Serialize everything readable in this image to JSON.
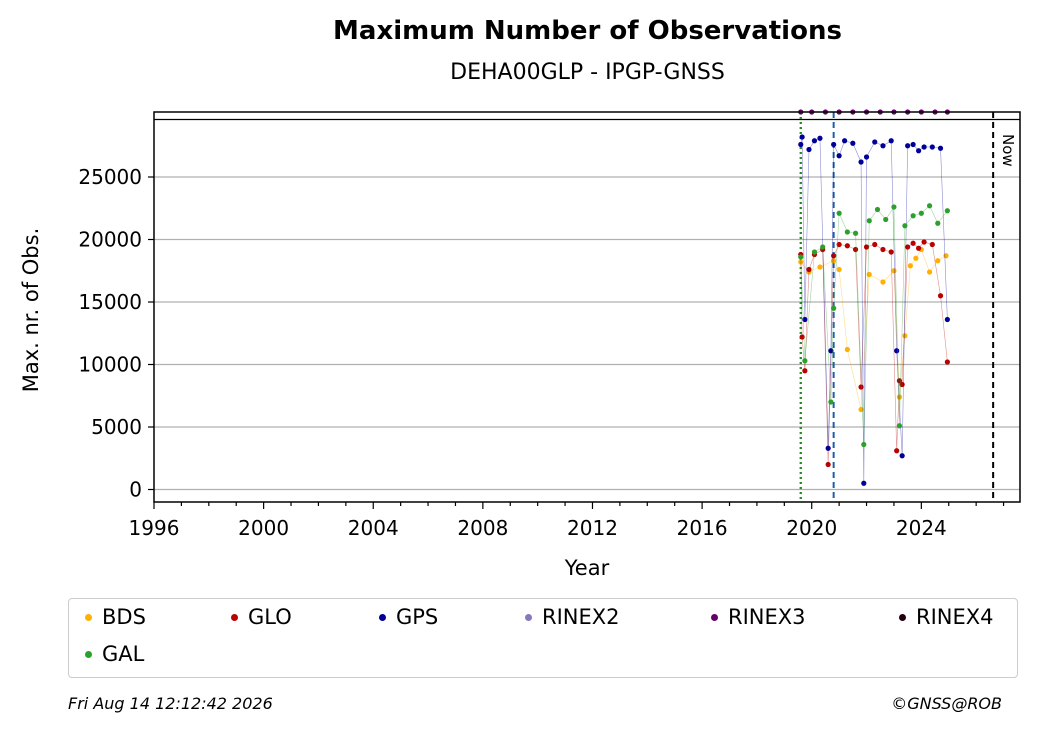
{
  "chart_data": {
    "type": "scatter",
    "title": "Maximum Number of Observations",
    "subtitle": "DEHA00GLP - IPGP-GNSS",
    "xlabel": "Year",
    "ylabel": "Max. nr. of Obs.",
    "xlim": [
      1996,
      2027.6
    ],
    "ylim": [
      -1000,
      30200
    ],
    "x_ticks": [
      1996,
      2000,
      2004,
      2008,
      2012,
      2016,
      2020,
      2024
    ],
    "y_ticks": [
      0,
      5000,
      10000,
      15000,
      20000,
      25000
    ],
    "grid": "horizontal",
    "top_line_y": 29600,
    "series": [
      {
        "name": "BDS",
        "color": "#ffb000",
        "x": [
          2019.6,
          2019.9,
          2020.3,
          2020.8,
          2021.0,
          2021.3,
          2021.8,
          2022.1,
          2022.6,
          2023.0,
          2023.2,
          2023.4,
          2023.6,
          2023.8,
          2024.0,
          2024.3,
          2024.6,
          2024.9
        ],
        "y": [
          18200,
          17400,
          17800,
          18300,
          17600,
          11200,
          6400,
          17200,
          16600,
          17500,
          7400,
          12300,
          17900,
          18500,
          19200,
          17400,
          18300,
          18700
        ]
      },
      {
        "name": "GLO",
        "color": "#bb0000",
        "x": [
          2019.6,
          2019.65,
          2019.75,
          2019.9,
          2020.1,
          2020.4,
          2020.6,
          2020.8,
          2021.0,
          2021.3,
          2021.6,
          2021.8,
          2022.0,
          2022.3,
          2022.6,
          2022.9,
          2023.1,
          2023.2,
          2023.3,
          2023.5,
          2023.7,
          2023.9,
          2024.1,
          2024.4,
          2024.7,
          2024.95
        ],
        "y": [
          18800,
          12200,
          9500,
          17600,
          18800,
          19200,
          2000,
          18700,
          19600,
          19500,
          19200,
          8200,
          19400,
          19600,
          19200,
          19000,
          3100,
          8700,
          8400,
          19400,
          19700,
          19300,
          19800,
          19600,
          15500,
          10200
        ]
      },
      {
        "name": "GPS",
        "color": "#000099",
        "x": [
          2019.6,
          2019.65,
          2019.75,
          2019.9,
          2020.1,
          2020.3,
          2020.6,
          2020.7,
          2020.8,
          2021.0,
          2021.2,
          2021.5,
          2021.8,
          2021.9,
          2022.0,
          2022.3,
          2022.6,
          2022.9,
          2023.1,
          2023.3,
          2023.5,
          2023.7,
          2023.9,
          2024.1,
          2024.4,
          2024.7,
          2024.95
        ],
        "y": [
          27600,
          28200,
          13600,
          27200,
          27900,
          28100,
          3300,
          11100,
          27600,
          26700,
          27900,
          27700,
          26200,
          500,
          26600,
          27800,
          27500,
          27900,
          11100,
          2700,
          27500,
          27600,
          27100,
          27400,
          27400,
          27300,
          13600
        ]
      },
      {
        "name": "RINEX2",
        "color": "#8877bb",
        "x": [],
        "y": []
      },
      {
        "name": "RINEX3",
        "color": "#660066",
        "x": [
          2019.6,
          2020.0,
          2020.5,
          2021.0,
          2021.5,
          2022.0,
          2022.5,
          2023.0,
          2023.5,
          2024.0,
          2024.5,
          2024.95
        ],
        "y": [
          30200,
          30200,
          30200,
          30200,
          30200,
          30200,
          30200,
          30200,
          30200,
          30200,
          30200,
          30200
        ]
      },
      {
        "name": "RINEX4",
        "color": "#220011",
        "x": [],
        "y": []
      },
      {
        "name": "GAL",
        "color": "#2ca02c",
        "x": [
          2019.6,
          2019.75,
          2020.1,
          2020.4,
          2020.7,
          2020.8,
          2021.0,
          2021.3,
          2021.6,
          2021.9,
          2022.1,
          2022.4,
          2022.7,
          2023.0,
          2023.2,
          2023.4,
          2023.7,
          2024.0,
          2024.3,
          2024.6,
          2024.95
        ],
        "y": [
          18600,
          10300,
          19000,
          19400,
          7000,
          14500,
          22100,
          20600,
          20500,
          3600,
          21500,
          22400,
          21600,
          22600,
          5100,
          21100,
          21900,
          22100,
          22700,
          21300,
          22300
        ]
      }
    ],
    "vlines": [
      {
        "x": 2019.6,
        "color": "#cc0000",
        "style": "dotted"
      },
      {
        "x": 2019.6,
        "color": "#228B22",
        "style": "dotted"
      },
      {
        "x": 2020.8,
        "color": "#1f5fa8",
        "style": "dashed"
      },
      {
        "x": 2026.62,
        "color": "#000000",
        "style": "dashed",
        "label": "Now"
      }
    ]
  },
  "legend": {
    "items": [
      {
        "label": "BDS",
        "color": "#ffb000"
      },
      {
        "label": "GLO",
        "color": "#bb0000"
      },
      {
        "label": "GPS",
        "color": "#000099"
      },
      {
        "label": "RINEX2",
        "color": "#8877bb"
      },
      {
        "label": "RINEX3",
        "color": "#660066"
      },
      {
        "label": "RINEX4",
        "color": "#220011"
      },
      {
        "label": "GAL",
        "color": "#2ca02c"
      }
    ]
  },
  "footer": {
    "date": "Fri Aug 14 12:12:42 2026",
    "copyright": "©GNSS@ROB"
  }
}
